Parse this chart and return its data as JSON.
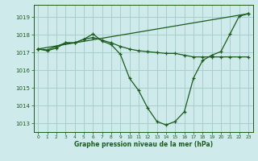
{
  "title": "Graphe pression niveau de la mer (hPa)",
  "bg_color": "#ceeaea",
  "grid_color": "#a8cece",
  "line_color": "#1a5c1a",
  "xlim": [
    -0.5,
    23.5
  ],
  "ylim": [
    1012.5,
    1019.7
  ],
  "yticks": [
    1013,
    1014,
    1015,
    1016,
    1017,
    1018,
    1019
  ],
  "xticks": [
    0,
    1,
    2,
    3,
    4,
    5,
    6,
    7,
    8,
    9,
    10,
    11,
    12,
    13,
    14,
    15,
    16,
    17,
    18,
    19,
    20,
    21,
    22,
    23
  ],
  "series": [
    {
      "x": [
        0,
        1,
        2,
        3,
        4,
        5,
        6,
        7,
        8,
        9,
        10,
        11,
        12,
        13,
        14,
        15,
        16,
        17,
        18,
        19,
        20,
        21,
        22,
        23
      ],
      "y": [
        1017.2,
        1017.1,
        1017.25,
        1017.55,
        1017.55,
        1017.75,
        1018.05,
        1017.65,
        1017.45,
        1016.9,
        1015.55,
        1014.85,
        1013.85,
        1013.1,
        1012.9,
        1013.1,
        1013.65,
        1015.55,
        1016.55,
        1016.85,
        1017.05,
        1018.05,
        1019.05,
        1019.2
      ]
    },
    {
      "x": [
        0,
        23
      ],
      "y": [
        1017.2,
        1019.2
      ]
    },
    {
      "x": [
        0,
        1,
        2,
        3,
        4,
        5,
        6,
        7,
        8,
        9,
        10,
        11,
        12,
        13,
        14,
        15,
        16,
        17,
        18,
        19,
        20,
        21,
        22,
        23
      ],
      "y": [
        1017.2,
        1017.15,
        1017.35,
        1017.55,
        1017.55,
        1017.75,
        1017.85,
        1017.7,
        1017.55,
        1017.35,
        1017.2,
        1017.1,
        1017.05,
        1017.0,
        1016.95,
        1016.95,
        1016.85,
        1016.75,
        1016.75,
        1016.75,
        1016.75,
        1016.75,
        1016.75,
        1016.75
      ]
    }
  ]
}
